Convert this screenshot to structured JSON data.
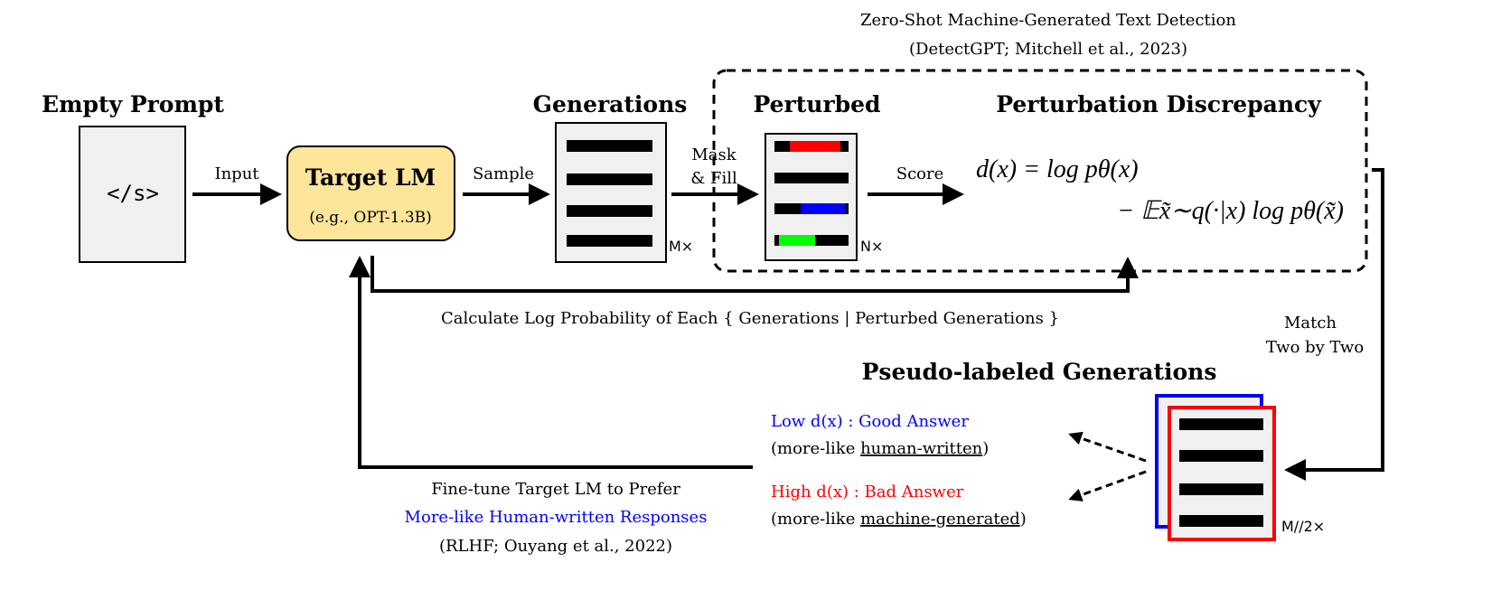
{
  "detectgpt": {
    "title": "Zero-Shot Machine-Generated Text Detection",
    "citation": "(DetectGPT; Mitchell et al., 2023)"
  },
  "empty_prompt": {
    "title": "Empty Prompt",
    "token": "</s>"
  },
  "input_label": "Input",
  "target_lm": {
    "title": "Target LM",
    "subtitle": "(e.g., OPT-1.3B)",
    "color": "#fde59a"
  },
  "sample_label": "Sample",
  "generations": {
    "title": "Generations",
    "count": "M×"
  },
  "mask_fill": {
    "line1": "Mask",
    "line2": "& Fill"
  },
  "perturbed": {
    "title": "Perturbed",
    "count": "N×",
    "colors": [
      "#ff0000",
      "#0000ff",
      "#00ff00"
    ]
  },
  "score_label": "Score",
  "discrepancy": {
    "title": "Perturbation Discrepancy",
    "line1": "d(x) = log pθ(x)",
    "line2": "− 𝔼x̃∼q(·|x) log pθ(x̃)"
  },
  "calc_label": "Calculate Log Probability of Each { Generations | Perturbed Generations }",
  "match": {
    "line1": "Match",
    "line2": "Two by Two"
  },
  "pseudo": {
    "title": "Pseudo-labeled Generations",
    "count": "M//2×"
  },
  "low": {
    "prefix": "Low  d(x) : Good Answer",
    "paren_open": "(more-like ",
    "term": "human-written",
    "paren_close": ")",
    "color": "#0000ff"
  },
  "high": {
    "prefix": "High d(x) : Bad Answer",
    "paren_open": "(more-like ",
    "term": "machine-generated",
    "paren_close": ")",
    "color": "#ff0000"
  },
  "finetune": {
    "line1": "Fine-tune Target LM to Prefer",
    "line2": "More-like Human-written Responses",
    "line3": "(RLHF; Ouyang et al., 2022)"
  }
}
